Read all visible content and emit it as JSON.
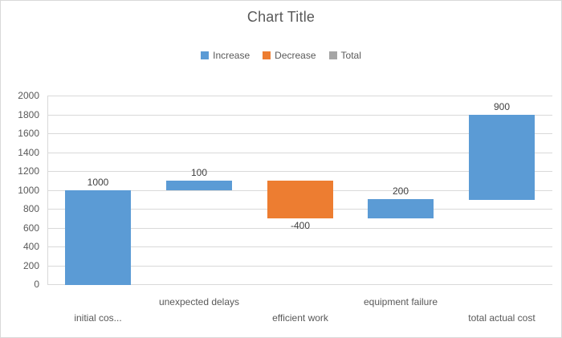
{
  "chart_data": {
    "type": "bar",
    "subtype": "waterfall",
    "title": "Chart Title",
    "legend": {
      "position": "top",
      "items": [
        {
          "label": "Increase",
          "color": "#5B9BD5"
        },
        {
          "label": "Decrease",
          "color": "#ED7D31"
        },
        {
          "label": "Total",
          "color": "#A5A5A5"
        }
      ]
    },
    "y_axis": {
      "min": 0,
      "max": 2000,
      "step": 200,
      "tick_labels": [
        "0",
        "200",
        "400",
        "600",
        "800",
        "1000",
        "1200",
        "1400",
        "1600",
        "1800",
        "2000"
      ]
    },
    "grid": true,
    "categories": [
      {
        "display": "initial cos...",
        "row": "bottom"
      },
      {
        "display": "unexpected delays",
        "row": "top"
      },
      {
        "display": "efficient work",
        "row": "bottom"
      },
      {
        "display": "equipment failure",
        "row": "top"
      },
      {
        "display": "total actual cost",
        "row": "bottom"
      }
    ],
    "bars": [
      {
        "category": "initial cos...",
        "series": "Increase",
        "value": 1000,
        "start": 0,
        "end": 1000,
        "data_label": "1000"
      },
      {
        "category": "unexpected delays",
        "series": "Increase",
        "value": 100,
        "start": 1000,
        "end": 1100,
        "data_label": "100"
      },
      {
        "category": "efficient work",
        "series": "Decrease",
        "value": -400,
        "start": 1100,
        "end": 700,
        "data_label": "-400"
      },
      {
        "category": "equipment failure",
        "series": "Increase",
        "value": 200,
        "start": 700,
        "end": 900,
        "data_label": "200"
      },
      {
        "category": "total actual cost",
        "series": "Increase",
        "value": 900,
        "start": 900,
        "end": 1800,
        "data_label": "900"
      }
    ]
  },
  "colors": {
    "increase": "#5B9BD5",
    "decrease": "#ED7D31",
    "total": "#A5A5A5",
    "title_text": "#595959",
    "axis_text": "#595959",
    "data_label_text": "#404040",
    "gridline": "#D9D9D9",
    "chart_border": "#D9D9D9",
    "background": "#FFFFFF"
  }
}
